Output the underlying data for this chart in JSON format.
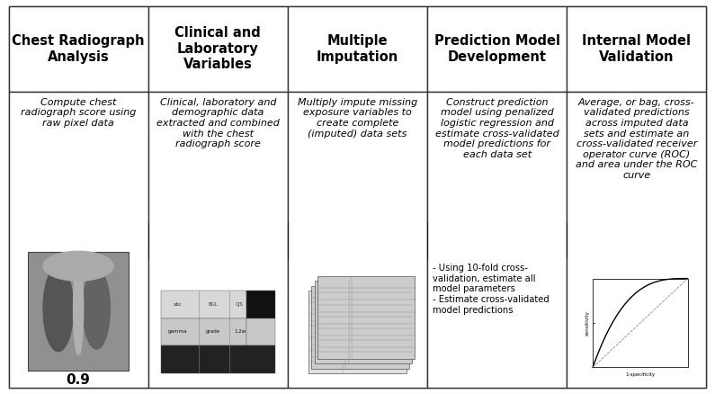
{
  "background_color": "#ffffff",
  "border_color": "#333333",
  "columns": [
    {
      "title": "Chest Radiograph\nAnalysis",
      "top_text": "Compute chest\nradiograph score using\nraw pixel data",
      "has_xray": true,
      "bottom_label": "0.9"
    },
    {
      "title": "Clinical and\nLaboratory\nVariables",
      "top_text": "Clinical, laboratory and\ndemographic data\nextracted and combined\nwith the chest\nradiograph score",
      "has_table": true,
      "bottom_label": ""
    },
    {
      "title": "Multiple\nImputation",
      "top_text": "Multiply impute missing\nexposure variables to\ncreate complete\n(imputed) data sets",
      "has_stacked": true,
      "bottom_label": ""
    },
    {
      "title": "Prediction Model\nDevelopment",
      "top_text": "Construct prediction\nmodel using penalized\nlogistic regression and\nestimate cross-validated\nmodel predictions for\neach data set",
      "has_bullets": true,
      "bottom_label": "",
      "bullet_text": "- Using 10-fold cross-\nvalidation, estimate all\nmodel parameters\n- Estimate cross-validated\nmodel predictions"
    },
    {
      "title": "Internal Model\nValidation",
      "top_text": "Average, or bag, cross-\nvalidated predictions\nacross imputed data\nsets and estimate an\ncross-validated receiver\noperator curve (ROC)\nand area under the ROC\ncurve",
      "has_roc": true,
      "bottom_label": ""
    }
  ],
  "arrow_color": "#111111",
  "text_color": "#000000",
  "title_fontsize": 10.5,
  "body_fontsize": 8.0,
  "italic_fontsize": 8.0
}
